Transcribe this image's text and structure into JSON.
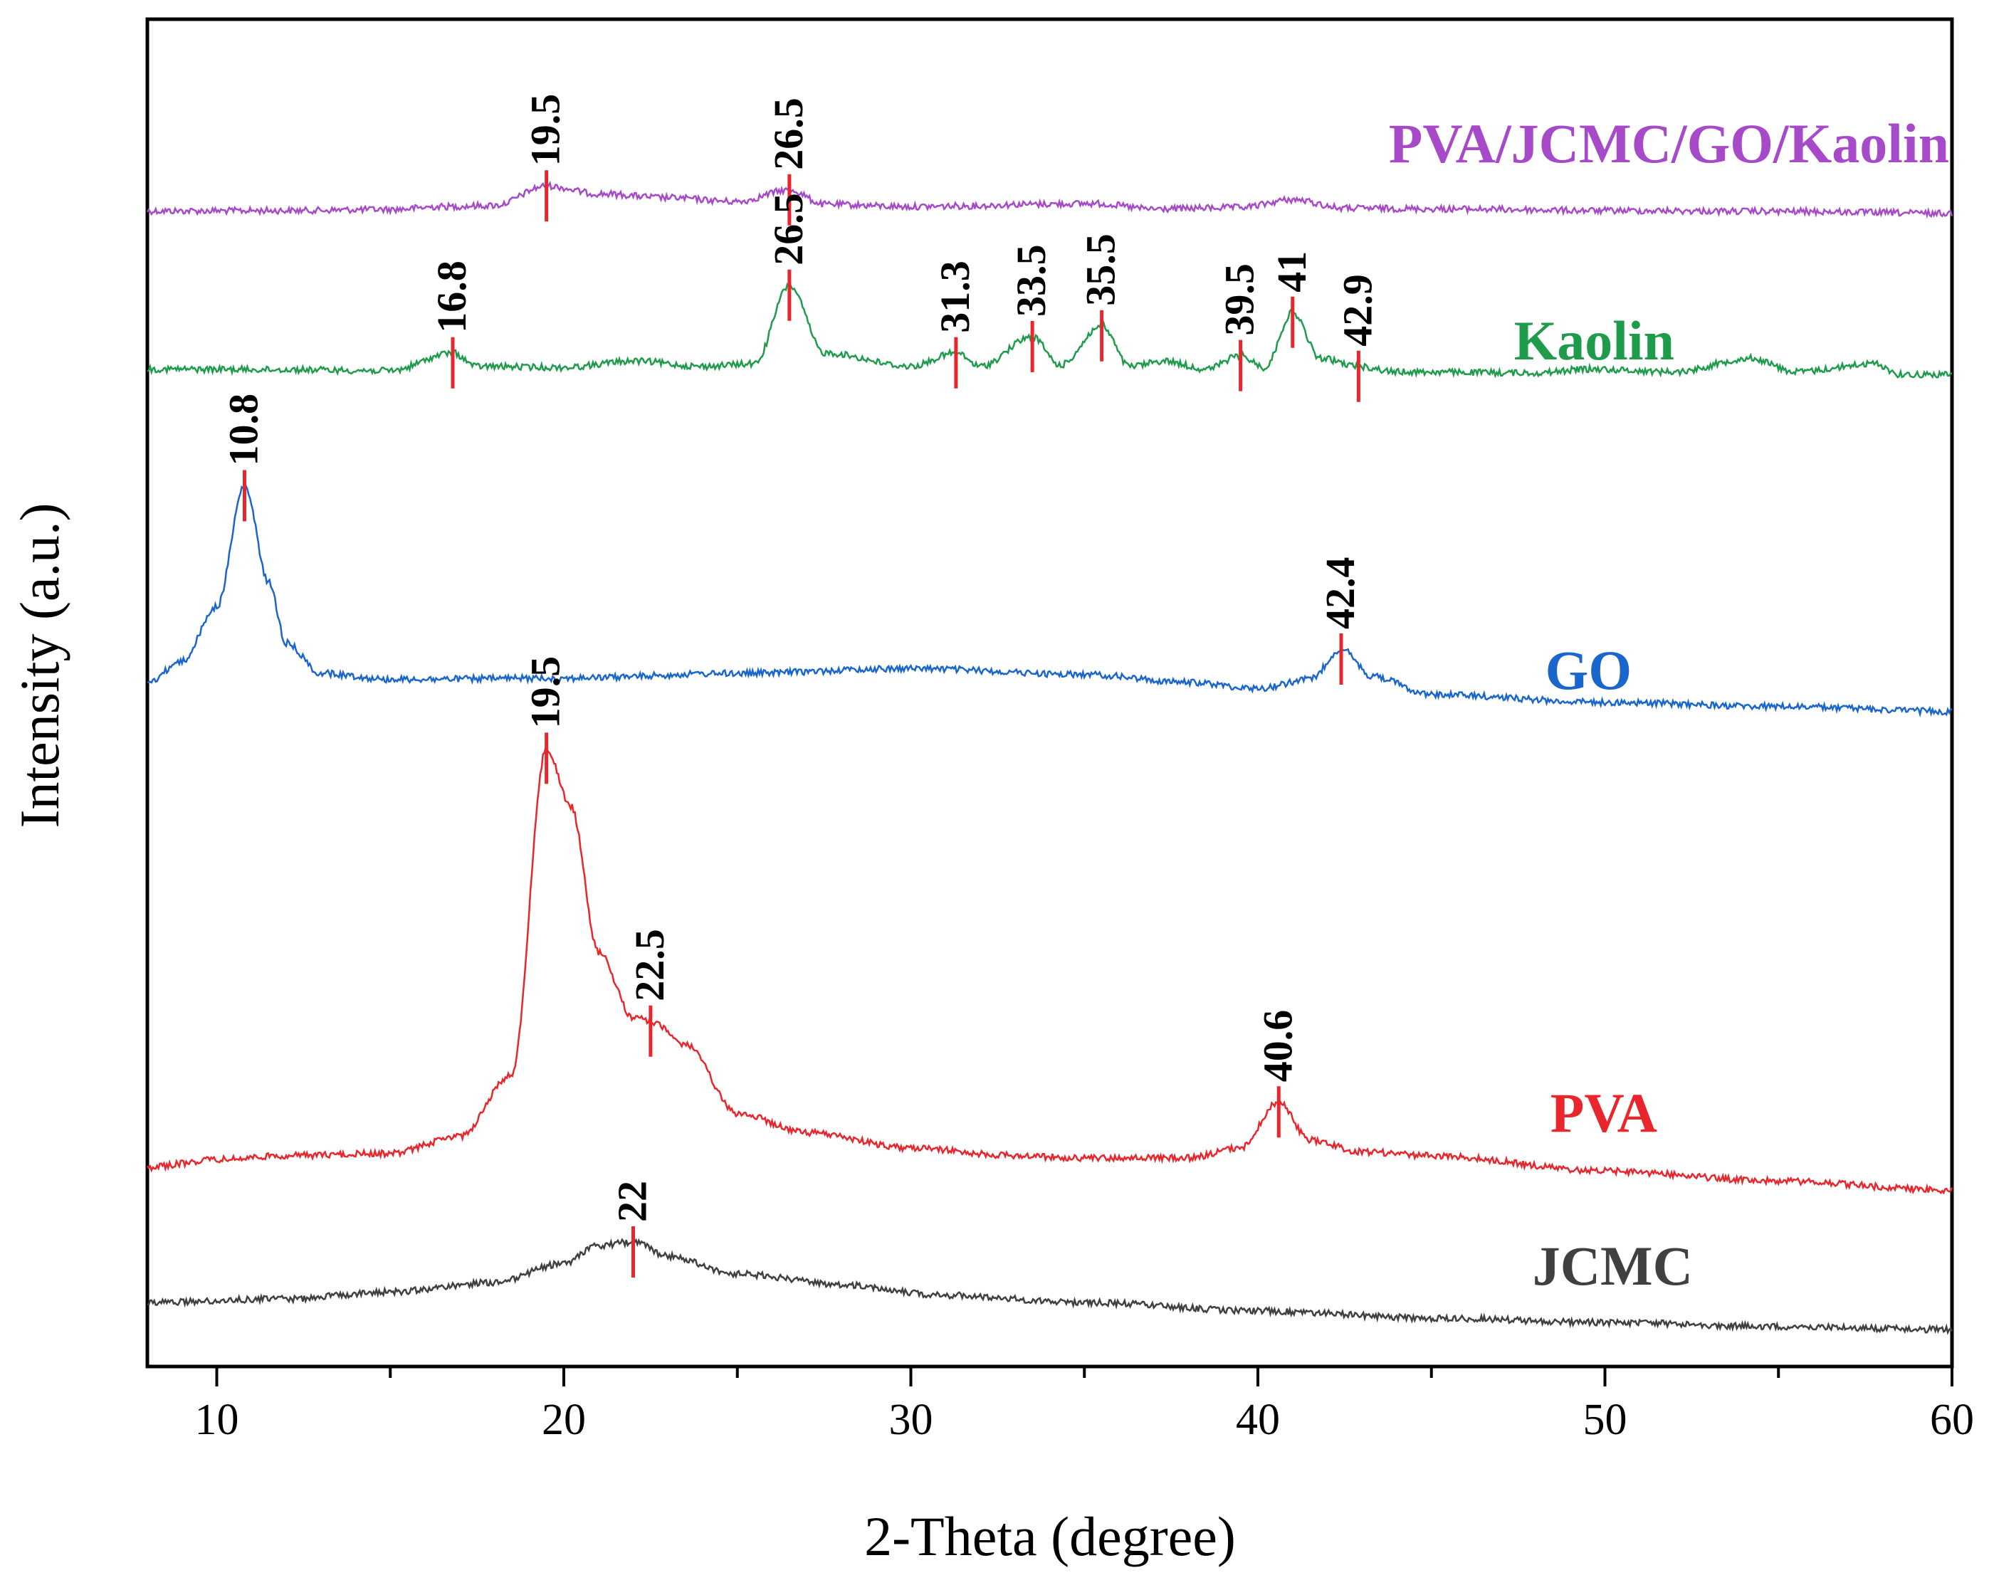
{
  "chart_data": {
    "type": "line",
    "title": "",
    "xlabel": "2-Theta (degree)",
    "ylabel": "Intensity (a.u.)",
    "xlim": [
      8,
      60
    ],
    "x_ticks": [
      "10",
      "20",
      "30",
      "40",
      "50",
      "60"
    ],
    "y_ticks": [],
    "grid": false,
    "legend": "inline labels at right of each trace",
    "series": [
      {
        "name": "PVA/JCMC/GO/Kaolin",
        "color": "#a64ac9",
        "points": [
          [
            8,
            1.0
          ],
          [
            12,
            2
          ],
          [
            15,
            5
          ],
          [
            16.5,
            12
          ],
          [
            18,
            15
          ],
          [
            19.5,
            65
          ],
          [
            21,
            45
          ],
          [
            23,
            35
          ],
          [
            25,
            25
          ],
          [
            26.5,
            55
          ],
          [
            27.5,
            18
          ],
          [
            30,
            12
          ],
          [
            31.8,
            14
          ],
          [
            33.2,
            18
          ],
          [
            35.3,
            20
          ],
          [
            37,
            6
          ],
          [
            39.5,
            10
          ],
          [
            41,
            30
          ],
          [
            42.5,
            8
          ],
          [
            45.5,
            6
          ],
          [
            50,
            2
          ],
          [
            55,
            0
          ],
          [
            60,
            -5
          ]
        ],
        "peaks": [
          "19.5",
          "26.5"
        ]
      },
      {
        "name": "Kaolin",
        "color": "#1e9c4c",
        "points": [
          [
            8,
            15
          ],
          [
            12,
            14
          ],
          [
            15,
            12
          ],
          [
            16.8,
            45
          ],
          [
            17.5,
            20
          ],
          [
            20,
            18
          ],
          [
            22,
            30
          ],
          [
            24,
            20
          ],
          [
            25.5,
            25
          ],
          [
            26.5,
            170
          ],
          [
            27.5,
            45
          ],
          [
            30,
            20
          ],
          [
            31.3,
            45
          ],
          [
            32,
            20
          ],
          [
            33.5,
            75
          ],
          [
            34.3,
            22
          ],
          [
            35.5,
            95
          ],
          [
            36.3,
            20
          ],
          [
            37.3,
            30
          ],
          [
            38.5,
            15
          ],
          [
            39.5,
            40
          ],
          [
            40.2,
            18
          ],
          [
            41,
            120
          ],
          [
            41.8,
            35
          ],
          [
            42.9,
            20
          ],
          [
            44,
            10
          ],
          [
            48,
            8
          ],
          [
            49.5,
            15
          ],
          [
            52,
            10
          ],
          [
            54.2,
            35
          ],
          [
            55.5,
            10
          ],
          [
            57.8,
            25
          ],
          [
            58.5,
            5
          ],
          [
            60,
            5
          ]
        ],
        "peaks": [
          "16.8",
          "26.5",
          "31.3",
          "33.5",
          "35.5",
          "39.5",
          "41",
          "42.9"
        ]
      },
      {
        "name": "GO",
        "color": "#1a66cc",
        "points": [
          [
            8,
            5
          ],
          [
            9,
            40
          ],
          [
            10,
            130
          ],
          [
            10.8,
            330
          ],
          [
            11.5,
            170
          ],
          [
            12,
            70
          ],
          [
            13,
            20
          ],
          [
            15,
            10
          ],
          [
            20,
            12
          ],
          [
            25,
            20
          ],
          [
            30,
            28
          ],
          [
            35,
            18
          ],
          [
            38,
            5
          ],
          [
            40,
            -5
          ],
          [
            41.5,
            10
          ],
          [
            42.4,
            60
          ],
          [
            43.3,
            15
          ],
          [
            45,
            -15
          ],
          [
            50,
            -28
          ],
          [
            55,
            -35
          ],
          [
            60,
            -43
          ]
        ],
        "peaks": [
          "10.8",
          "42.4"
        ]
      },
      {
        "name": "PVA",
        "color": "#e8262c",
        "points": [
          [
            8,
            0
          ],
          [
            10,
            10
          ],
          [
            12,
            15
          ],
          [
            15,
            18
          ],
          [
            17,
            40
          ],
          [
            18.5,
            120
          ],
          [
            19.5,
            545
          ],
          [
            20.2,
            470
          ],
          [
            21,
            280
          ],
          [
            22,
            195
          ],
          [
            22.5,
            190
          ],
          [
            23.5,
            160
          ],
          [
            25,
            70
          ],
          [
            27,
            45
          ],
          [
            30,
            25
          ],
          [
            33,
            15
          ],
          [
            35,
            12
          ],
          [
            38,
            12
          ],
          [
            39.5,
            25
          ],
          [
            40.6,
            85
          ],
          [
            41.5,
            35
          ],
          [
            43,
            20
          ],
          [
            45,
            15
          ],
          [
            50,
            -5
          ],
          [
            55,
            -18
          ],
          [
            60,
            -30
          ]
        ],
        "peaks": [
          "19.5",
          "22.5",
          "40.6"
        ]
      },
      {
        "name": "JCMC",
        "color": "#404040",
        "points": [
          [
            8,
            0
          ],
          [
            12,
            5
          ],
          [
            15,
            15
          ],
          [
            18,
            28
          ],
          [
            20,
            55
          ],
          [
            21,
            80
          ],
          [
            22,
            85
          ],
          [
            23,
            65
          ],
          [
            25,
            40
          ],
          [
            28,
            25
          ],
          [
            31,
            10
          ],
          [
            35,
            0
          ],
          [
            40,
            -12
          ],
          [
            45,
            -22
          ],
          [
            50,
            -28
          ],
          [
            55,
            -34
          ],
          [
            60,
            -38
          ]
        ],
        "peaks": [
          "22"
        ]
      }
    ]
  }
}
